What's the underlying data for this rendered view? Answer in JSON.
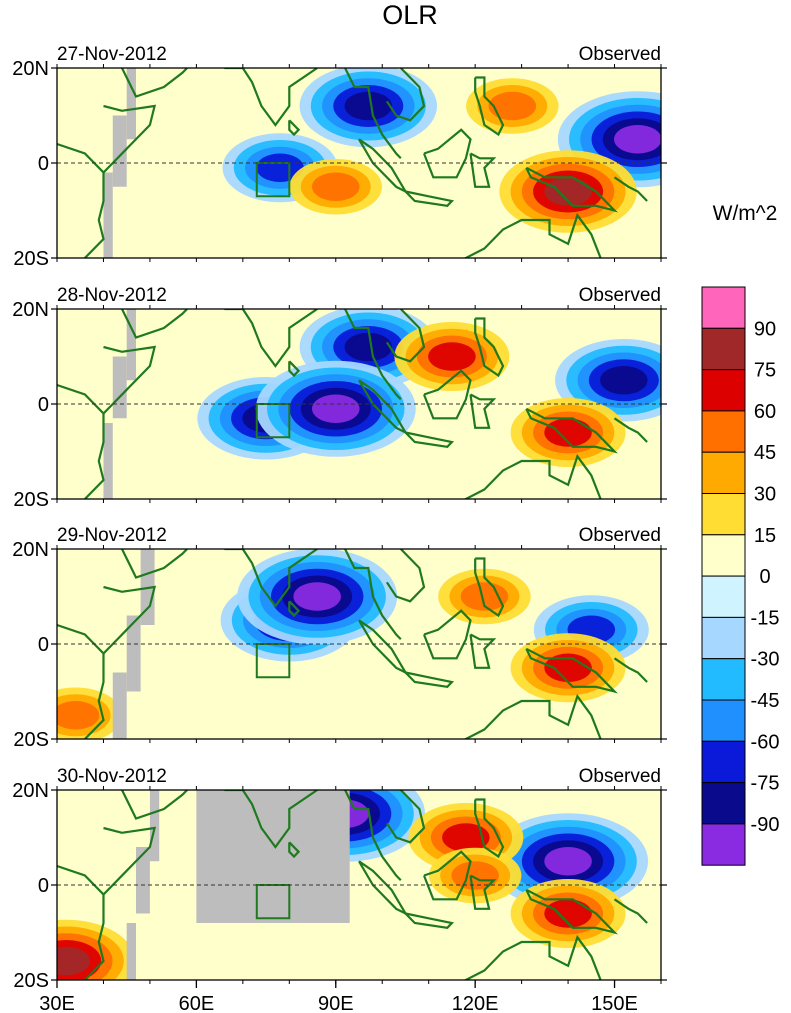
{
  "chart_data": {
    "type": "heatmap",
    "title": "OLR",
    "units": "W/m^2",
    "x_range": [
      30,
      160
    ],
    "y_range": [
      -20,
      20
    ],
    "x_ticks": [
      {
        "value": 30,
        "label": "30E"
      },
      {
        "value": 60,
        "label": "60E"
      },
      {
        "value": 90,
        "label": "90E"
      },
      {
        "value": 120,
        "label": "120E"
      },
      {
        "value": 150,
        "label": "150E"
      }
    ],
    "y_ticks": [
      {
        "value": 20,
        "label": "20N"
      },
      {
        "value": 0,
        "label": "0"
      },
      {
        "value": -20,
        "label": "20S"
      }
    ],
    "colorbar": {
      "labels": [
        "90",
        "75",
        "60",
        "45",
        "30",
        "15",
        "0",
        "-15",
        "-30",
        "-45",
        "-60",
        "-75",
        "-90"
      ],
      "colors": [
        "#ff66bb",
        "#a02828",
        "#dd0000",
        "#ff7000",
        "#ffaa00",
        "#ffdd33",
        "#ffffcc",
        "#d0f4ff",
        "#a6d8ff",
        "#22bbff",
        "#2090ff",
        "#0a1ad8",
        "#0a0a8c",
        "#8a2be2"
      ]
    },
    "panels": [
      {
        "date": "27-Nov-2012",
        "label": "Observed",
        "anomalies": [
          {
            "lon": 97,
            "lat": 12,
            "value": -75
          },
          {
            "lon": 155,
            "lat": 5,
            "value": -90
          },
          {
            "lon": 78,
            "lat": -1,
            "value": -60
          },
          {
            "lon": 140,
            "lat": -6,
            "value": 75
          },
          {
            "lon": 128,
            "lat": 12,
            "value": 45
          },
          {
            "lon": 90,
            "lat": -5,
            "value": 45
          }
        ]
      },
      {
        "date": "28-Nov-2012",
        "label": "Observed",
        "anomalies": [
          {
            "lon": 97,
            "lat": 12,
            "value": -75
          },
          {
            "lon": 75,
            "lat": -3,
            "value": -75
          },
          {
            "lon": 90,
            "lat": -1,
            "value": -90
          },
          {
            "lon": 152,
            "lat": 5,
            "value": -75
          },
          {
            "lon": 115,
            "lat": 10,
            "value": 60
          },
          {
            "lon": 140,
            "lat": -6,
            "value": 60
          }
        ]
      },
      {
        "date": "29-Nov-2012",
        "label": "Observed",
        "anomalies": [
          {
            "lon": 80,
            "lat": 5,
            "value": -75
          },
          {
            "lon": 86,
            "lat": 10,
            "value": -90
          },
          {
            "lon": 145,
            "lat": 3,
            "value": -60
          },
          {
            "lon": 140,
            "lat": -5,
            "value": 60
          },
          {
            "lon": 122,
            "lat": 10,
            "value": 45
          },
          {
            "lon": 34,
            "lat": -15,
            "value": 45
          }
        ]
      },
      {
        "date": "30-Nov-2012",
        "label": "Observed",
        "anomalies": [
          {
            "lon": 92,
            "lat": 15,
            "value": -90
          },
          {
            "lon": 140,
            "lat": 5,
            "value": -90
          },
          {
            "lon": 118,
            "lat": 10,
            "value": 60
          },
          {
            "lon": 140,
            "lat": -6,
            "value": 60
          },
          {
            "lon": 32,
            "lat": -16,
            "value": 75
          },
          {
            "lon": 120,
            "lat": 2,
            "value": 45
          }
        ]
      }
    ]
  }
}
